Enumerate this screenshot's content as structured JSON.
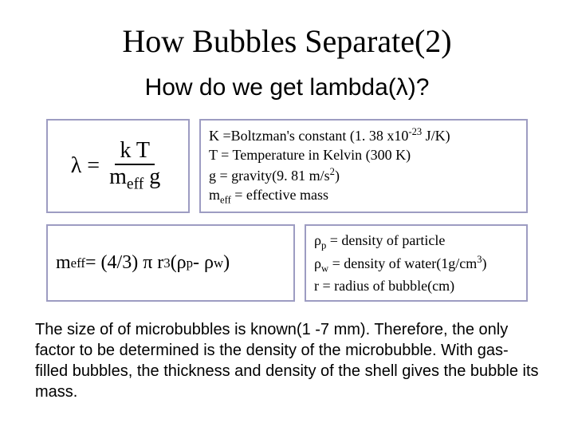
{
  "title": "How Bubbles Separate(2)",
  "subtitle": "How do we get lambda(λ)?",
  "eq1": {
    "lhs": "λ = ",
    "numerator": "k T",
    "denominator_html": "m<sub>eff</sub> g"
  },
  "defs1": {
    "l1_html": "K =Boltzman's constant (1. 38 x10<sup>-23</sup> J/K)",
    "l2": "T = Temperature in Kelvin (300 K)",
    "l3_html": "g = gravity(9. 81 m/s<sup>2</sup>)",
    "l4_html": "m<sub>eff</sub> = effective mass"
  },
  "eq2_html": "m<sub>eff</sub> = (4/3) π r<sup>3</sup> (ρ<sub>p</sub> - ρ<sub>w</sub>)",
  "defs2": {
    "l1_html": "ρ<sub>p</sub> = density of particle",
    "l2_html": "ρ<sub>w</sub> = density of water(1g/cm<sup>3</sup>)",
    "l3": "r = radius of bubble(cm)"
  },
  "paragraph": "The size of of microbubbles is known(1 -7 mm).  Therefore, the only factor to be determined is the density of the microbubble. With gas-filled bubbles, the thickness and density of the shell gives the bubble its mass.",
  "colors": {
    "box_border": "#9d9cc2",
    "background": "#ffffff",
    "text": "#000000"
  }
}
